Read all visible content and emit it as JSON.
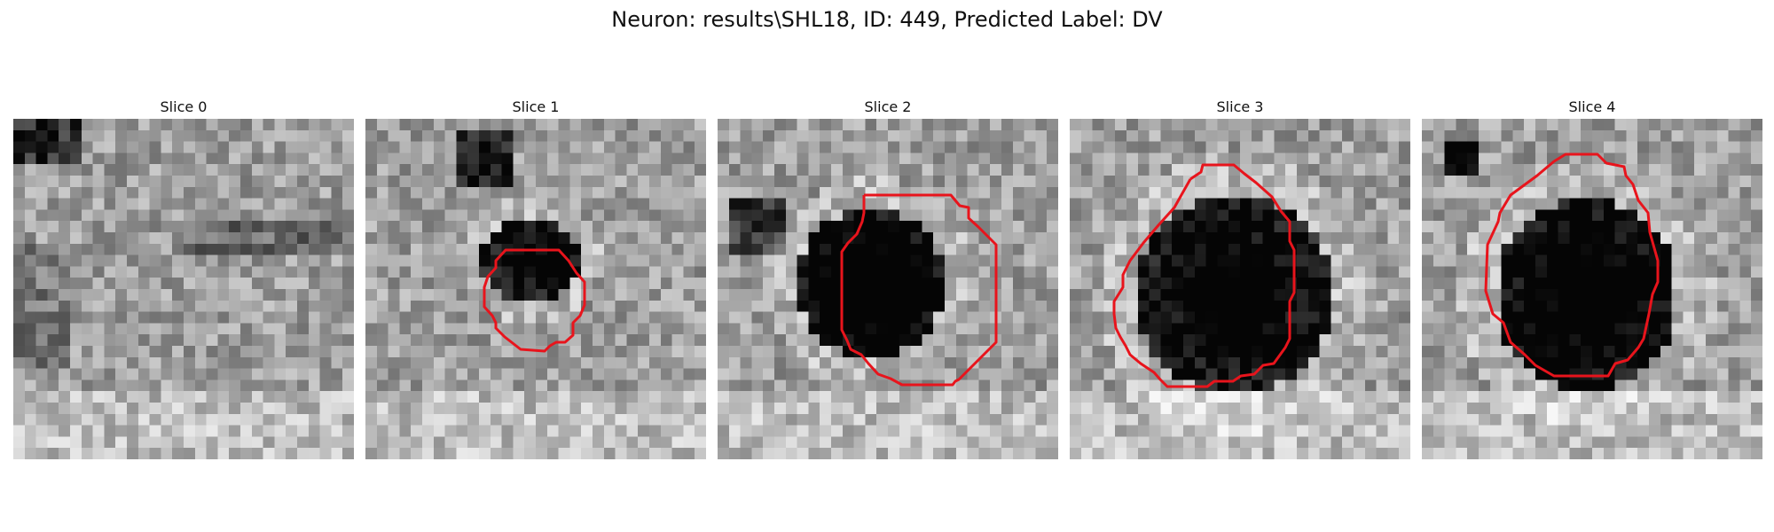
{
  "suptitle": "Neuron: results\\SHL18, ID: 449, Predicted Label: DV",
  "contour_color": "#e8141c",
  "slices": [
    {
      "title": "Slice 0",
      "has_contour": false
    },
    {
      "title": "Slice 1",
      "has_contour": true
    },
    {
      "title": "Slice 2",
      "has_contour": true
    },
    {
      "title": "Slice 3",
      "has_contour": true
    },
    {
      "title": "Slice 4",
      "has_contour": true
    }
  ]
}
